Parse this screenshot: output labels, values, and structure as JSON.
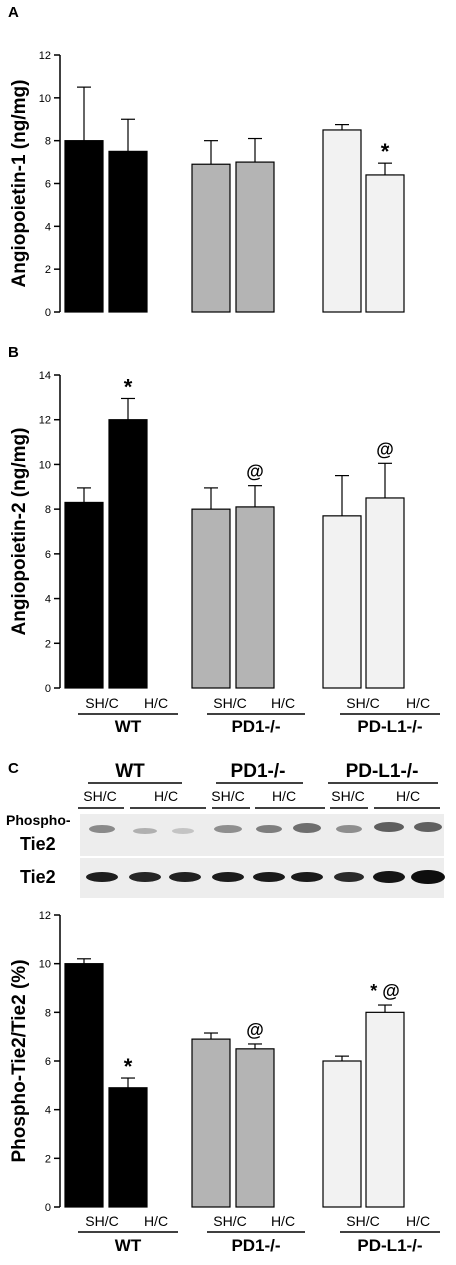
{
  "panels": {
    "A": {
      "letter": "A"
    },
    "B": {
      "letter": "B"
    },
    "C": {
      "letter": "C"
    }
  },
  "group_labels": [
    "WT",
    "PD1-/-",
    "PD-L1-/-"
  ],
  "condition_labels": [
    "SH/C",
    "H/C"
  ],
  "blot": {
    "group_labels": [
      "WT",
      "PD1-/-",
      "PD-L1-/-"
    ],
    "lane_labels": [
      "SH/C",
      "H/C",
      "SH/C",
      "H/C",
      "SH/C",
      "H/C"
    ],
    "row1_label_line1": "Phospho-",
    "row1_label_line2": "Tie2",
    "row2_label": "Tie2"
  },
  "colors": {
    "WT": "#000000",
    "PD1-/-": "#b4b4b4",
    "PD-L1-/-": "#f2f2f2",
    "outline": "#000000"
  },
  "chart_data": [
    {
      "type": "bar",
      "panel": "A",
      "ylabel": "Angiopoietin-1 (ng/mg)",
      "ylim": [
        0,
        12
      ],
      "yticks": [
        0,
        2,
        4,
        6,
        8,
        10,
        12
      ],
      "tick_labels": [
        "0",
        "2",
        "4",
        "6",
        "8",
        "10",
        "12"
      ],
      "categories": [
        "WT SH/C",
        "WT H/C",
        "PD1-/- SH/C",
        "PD1-/- H/C",
        "PD-L1-/- SH/C",
        "PD-L1-/- H/C"
      ],
      "values": [
        8.0,
        7.5,
        6.9,
        7.0,
        8.5,
        6.4
      ],
      "errors": [
        2.5,
        1.5,
        1.1,
        1.1,
        0.25,
        0.55
      ],
      "annotations": [
        "",
        "",
        "",
        "",
        "",
        "*"
      ]
    },
    {
      "type": "bar",
      "panel": "B",
      "ylabel": "Angiopoietin-2 (ng/mg)",
      "ylim": [
        0,
        14
      ],
      "yticks": [
        0,
        2,
        4,
        6,
        8,
        10,
        12,
        14
      ],
      "tick_labels": [
        "0",
        "2",
        "4",
        "6",
        "8",
        "10",
        "12",
        "14"
      ],
      "categories": [
        "WT SH/C",
        "WT H/C",
        "PD1-/- SH/C",
        "PD1-/- H/C",
        "PD-L1-/- SH/C",
        "PD-L1-/- H/C"
      ],
      "values": [
        8.3,
        12.0,
        8.0,
        8.1,
        7.7,
        8.5
      ],
      "errors": [
        0.65,
        0.95,
        0.95,
        0.95,
        1.8,
        1.55
      ],
      "annotations": [
        "",
        "*",
        "",
        "@",
        "",
        "@"
      ]
    },
    {
      "type": "bar",
      "panel": "C",
      "ylabel": "Phospho-Tie2/Tie2 (%)",
      "ylim": [
        0,
        12
      ],
      "yticks": [
        0,
        2,
        4,
        6,
        8,
        10,
        12
      ],
      "tick_labels": [
        "0",
        "2",
        "4",
        "6",
        "8",
        "10",
        "12"
      ],
      "categories": [
        "WT SH/C",
        "WT H/C",
        "PD1-/- SH/C",
        "PD1-/- H/C",
        "PD-L1-/- SH/C",
        "PD-L1-/- H/C"
      ],
      "values": [
        10.0,
        4.9,
        6.9,
        6.5,
        6.0,
        8.0
      ],
      "errors": [
        0.2,
        0.4,
        0.25,
        0.2,
        0.2,
        0.3
      ],
      "annotations": [
        "",
        "*",
        "",
        "@",
        "",
        "* @"
      ]
    }
  ]
}
